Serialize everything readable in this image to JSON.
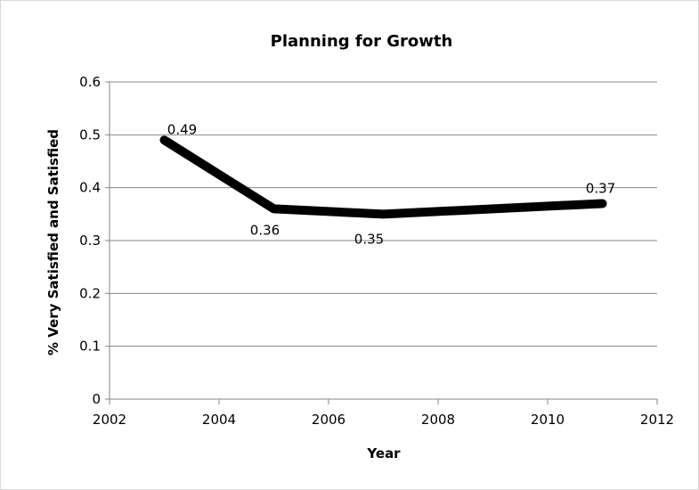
{
  "chart_data": {
    "type": "line",
    "title": "Planning for Growth",
    "xlabel": "Year",
    "ylabel": "% Very Satisfied and Satisfied",
    "xlim": [
      2002,
      2012
    ],
    "ylim": [
      0,
      0.6
    ],
    "x_ticks": [
      2002,
      2004,
      2006,
      2008,
      2010,
      2012
    ],
    "x_tick_labels": [
      "2002",
      "2004",
      "2006",
      "2008",
      "2010",
      "2012"
    ],
    "y_ticks": [
      0,
      0.1,
      0.2,
      0.3,
      0.4,
      0.5,
      0.6
    ],
    "y_tick_labels": [
      "0",
      "0.1",
      "0.2",
      "0.3",
      "0.4",
      "0.5",
      "0.6"
    ],
    "grid": "horizontal",
    "legend": "none",
    "series": [
      {
        "color": "#000000",
        "x": [
          2003,
          2005,
          2007,
          2011
        ],
        "y": [
          0.49,
          0.36,
          0.35,
          0.37
        ],
        "data_labels": [
          "0.49",
          "0.36",
          "0.35",
          "0.37"
        ]
      }
    ]
  }
}
